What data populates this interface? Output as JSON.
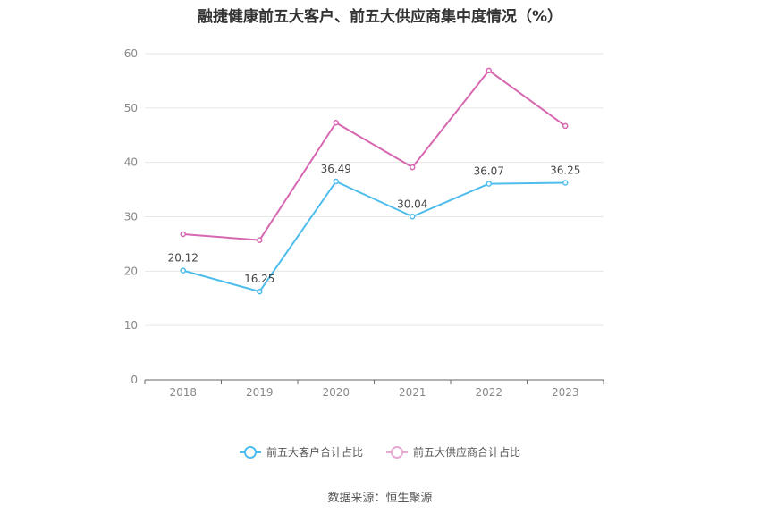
{
  "chart_data": {
    "type": "line",
    "title": "融捷健康前五大客户、前五大供应商集中度情况（%）",
    "categories": [
      "2018",
      "2019",
      "2020",
      "2021",
      "2022",
      "2023"
    ],
    "ylim": [
      0,
      60
    ],
    "yticks": [
      "0",
      "10",
      "20",
      "30",
      "40",
      "50",
      "60"
    ],
    "grid": true,
    "legend_position": "bottom",
    "series": [
      {
        "name": "前五大客户合计占比",
        "color": "#4fbdec",
        "values": [
          20.12,
          16.25,
          36.49,
          30.04,
          36.07,
          36.25
        ],
        "labels": [
          "20.12",
          "16.25",
          "36.49",
          "30.04",
          "36.07",
          "36.25"
        ]
      },
      {
        "name": "前五大供应商合计占比",
        "color": "#d667b0",
        "values": [
          26.8,
          25.7,
          47.3,
          39.1,
          56.9,
          46.7
        ]
      }
    ]
  },
  "footer": {
    "source": "数据来源：恒生聚源"
  }
}
